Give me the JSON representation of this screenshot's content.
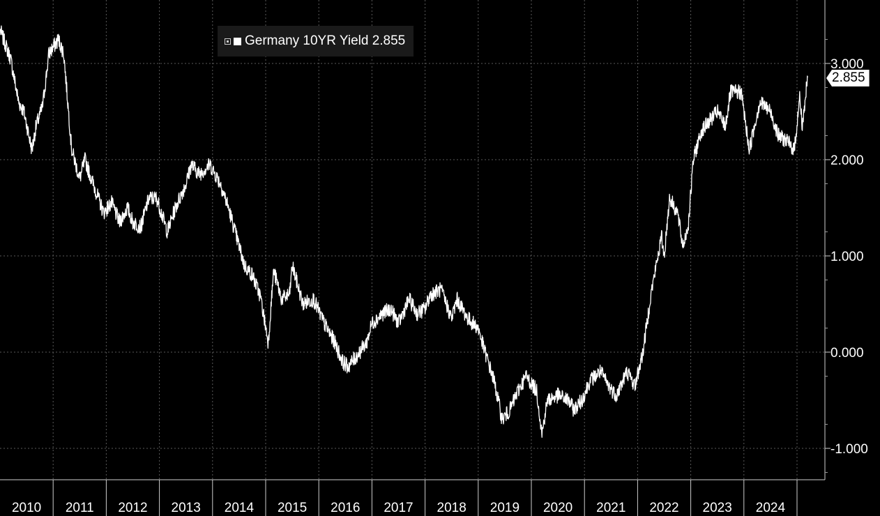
{
  "legend": {
    "series_label": "Germany 10YR Yield",
    "last_value_text": "2.855"
  },
  "colors": {
    "background": "#000000",
    "line": "#ffffff",
    "grid": "#5a5a5a",
    "legend_bg": "#1a1a1a"
  },
  "chart_data": {
    "type": "line",
    "title": "",
    "xlabel": "",
    "ylabel": "",
    "x_tick_labels": [
      "2010",
      "2011",
      "2012",
      "2013",
      "2014",
      "2015",
      "2016",
      "2017",
      "2018",
      "2019",
      "2020",
      "2021",
      "2022",
      "2023",
      "2024"
    ],
    "y_tick_labels": [
      "3.000",
      "2.000",
      "1.000",
      "0.000",
      "-1.000"
    ],
    "y_ticks": [
      3,
      2,
      1,
      0,
      -1
    ],
    "ylim": [
      -1.35,
      3.6
    ],
    "xlim": [
      2010.0,
      2025.5
    ],
    "grid": true,
    "legend_position": "top-left",
    "y_axis_side": "right",
    "last_value": 2.855,
    "series": [
      {
        "name": "Germany 10YR Yield",
        "x": [
          2010.0,
          2010.1,
          2010.2,
          2010.35,
          2010.45,
          2010.6,
          2010.68,
          2010.8,
          2010.92,
          2011.1,
          2011.2,
          2011.35,
          2011.5,
          2011.6,
          2011.72,
          2011.85,
          2011.95,
          2012.1,
          2012.25,
          2012.4,
          2012.5,
          2012.65,
          2012.8,
          2012.95,
          2013.15,
          2013.3,
          2013.5,
          2013.6,
          2013.75,
          2013.95,
          2014.15,
          2014.3,
          2014.45,
          2014.6,
          2014.75,
          2014.9,
          2015.05,
          2015.15,
          2015.3,
          2015.45,
          2015.5,
          2015.7,
          2015.9,
          2016.1,
          2016.3,
          2016.45,
          2016.55,
          2016.7,
          2016.9,
          2017.0,
          2017.2,
          2017.35,
          2017.5,
          2017.7,
          2017.85,
          2018.0,
          2018.1,
          2018.3,
          2018.5,
          2018.6,
          2018.8,
          2019.0,
          2019.1,
          2019.3,
          2019.45,
          2019.6,
          2019.75,
          2019.9,
          2020.1,
          2020.2,
          2020.3,
          2020.5,
          2020.7,
          2020.8,
          2020.95,
          2021.1,
          2021.3,
          2021.45,
          2021.6,
          2021.8,
          2021.95,
          2022.1,
          2022.25,
          2022.35,
          2022.45,
          2022.5,
          2022.6,
          2022.75,
          2022.85,
          2022.95,
          2023.05,
          2023.2,
          2023.35,
          2023.5,
          2023.65,
          2023.75,
          2023.95,
          2024.1,
          2024.3,
          2024.5,
          2024.65,
          2024.8,
          2024.95,
          2025.05,
          2025.1,
          2025.2
        ],
        "values": [
          3.35,
          3.2,
          3.05,
          2.6,
          2.5,
          2.1,
          2.35,
          2.55,
          3.1,
          3.25,
          3.1,
          2.1,
          1.8,
          2.0,
          1.8,
          1.6,
          1.45,
          1.55,
          1.35,
          1.5,
          1.35,
          1.3,
          1.6,
          1.6,
          1.25,
          1.5,
          1.75,
          1.95,
          1.85,
          1.95,
          1.75,
          1.5,
          1.2,
          0.9,
          0.8,
          0.58,
          0.1,
          0.85,
          0.55,
          0.6,
          0.9,
          0.5,
          0.55,
          0.3,
          0.1,
          -0.1,
          -0.15,
          -0.05,
          0.1,
          0.3,
          0.4,
          0.45,
          0.3,
          0.55,
          0.4,
          0.45,
          0.6,
          0.65,
          0.35,
          0.55,
          0.35,
          0.25,
          0.05,
          -0.3,
          -0.7,
          -0.6,
          -0.4,
          -0.25,
          -0.4,
          -0.85,
          -0.5,
          -0.45,
          -0.5,
          -0.6,
          -0.5,
          -0.3,
          -0.2,
          -0.35,
          -0.45,
          -0.2,
          -0.35,
          0.0,
          0.6,
          0.9,
          1.2,
          1.0,
          1.6,
          1.45,
          1.1,
          1.3,
          2.0,
          2.3,
          2.4,
          2.5,
          2.35,
          2.7,
          2.7,
          2.1,
          2.6,
          2.5,
          2.25,
          2.2,
          2.1,
          2.65,
          2.35,
          2.855
        ]
      }
    ]
  }
}
